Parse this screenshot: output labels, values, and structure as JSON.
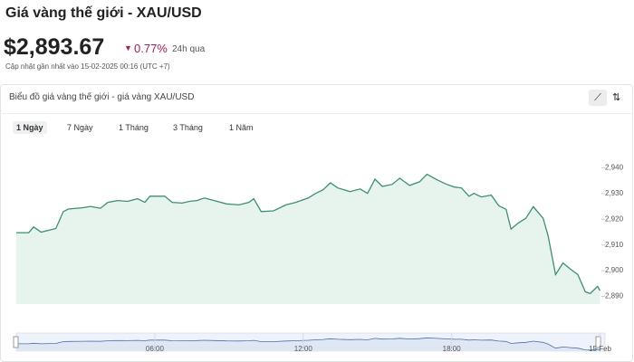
{
  "header": {
    "title": "Giá vàng thế giới - XAU/USD",
    "price": "$2,893.67",
    "change": "0.77%",
    "period": "24h qua",
    "updated": "Cập nhật gần nhất vào 15-02-2025 00:16 (UTC +7)"
  },
  "card": {
    "title": "Biểu đồ giá vàng thế giới - giá vàng XAU/USD",
    "tabs": [
      "1 Ngày",
      "7 Ngày",
      "1 Tháng",
      "3 Tháng",
      "1 Năm"
    ]
  },
  "chart_data": {
    "type": "line",
    "color": "#3d8f72",
    "fill": "#e7f4ee",
    "grid": false,
    "x": [
      0.4,
      0.9,
      1.1,
      1.4,
      2.0,
      2.3,
      2.5,
      3.1,
      3.4,
      3.8,
      4.1,
      4.5,
      4.9,
      5.3,
      5.6,
      5.8,
      6.4,
      6.7,
      7.1,
      7.4,
      7.7,
      8.0,
      8.4,
      8.9,
      9.4,
      9.8,
      10.0,
      10.3,
      10.8,
      11.3,
      11.7,
      12.2,
      12.5,
      12.8,
      13.1,
      13.4,
      13.9,
      14.3,
      14.6,
      14.9,
      15.2,
      15.6,
      15.9,
      16.3,
      16.7,
      17.0,
      17.4,
      17.8,
      18.1,
      18.4,
      18.7,
      18.9,
      19.2,
      19.6,
      19.9,
      20.2,
      20.4,
      20.7,
      21.0,
      21.3,
      21.7,
      21.9,
      22.2,
      22.5,
      22.8,
      23.1,
      23.4,
      23.6,
      23.9,
      24.0
    ],
    "values": [
      2914.8,
      2914.8,
      2917,
      2915,
      2916.4,
      2923,
      2924,
      2924.5,
      2925,
      2924.3,
      2926.6,
      2927.3,
      2927,
      2928,
      2926.6,
      2929,
      2929,
      2926.6,
      2926.3,
      2927,
      2927.3,
      2928.3,
      2927.3,
      2926,
      2925.6,
      2926.6,
      2928,
      2923,
      2923.3,
      2925.6,
      2926.6,
      2928.3,
      2930.1,
      2931.5,
      2934.2,
      2932.2,
      2930.8,
      2931.8,
      2930.1,
      2935.6,
      2932.8,
      2933.6,
      2936,
      2933.2,
      2934.6,
      2937.5,
      2935.4,
      2933.6,
      2932.6,
      2932.2,
      2929,
      2930.1,
      2928.7,
      2929.4,
      2925.3,
      2923.9,
      2916.2,
      2918.6,
      2920.4,
      2924.9,
      2920.4,
      2913.5,
      2898.5,
      2903,
      2900.6,
      2898.5,
      2891.8,
      2891.1,
      2893.9,
      2892.2
    ],
    "xlim": [
      0.4,
      24.2
    ],
    "xticks": [
      {
        "value": 6,
        "label": "06:00"
      },
      {
        "value": 12,
        "label": "12:00"
      },
      {
        "value": 18,
        "label": "18:00"
      },
      {
        "value": 24,
        "label": "15 Feb"
      }
    ],
    "ylim": [
      2887,
      2949
    ],
    "yticks": [
      {
        "value": 2890,
        "label": "2,890"
      },
      {
        "value": 2900,
        "label": "2,900"
      },
      {
        "value": 2910,
        "label": "2,910"
      },
      {
        "value": 2920,
        "label": "2,920"
      },
      {
        "value": 2930,
        "label": "2,930"
      },
      {
        "value": 2940,
        "label": "2,940"
      }
    ]
  }
}
